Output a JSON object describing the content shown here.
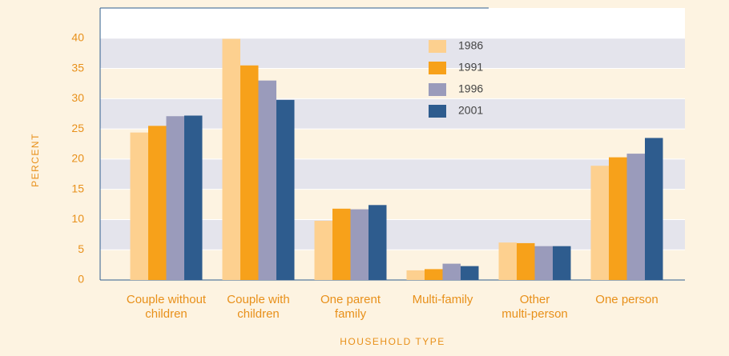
{
  "chart_data": {
    "type": "bar",
    "y_label": "PERCENT",
    "x_label": "HOUSEHOLD TYPE",
    "categories": [
      "Couple without\nchildren",
      "Couple with\nchildren",
      "One parent\nfamily",
      "Multi-family",
      "Other\nmulti-person",
      "One person"
    ],
    "series": [
      {
        "name": "1986",
        "color": "#fdd08f",
        "values": [
          24.4,
          39.9,
          9.8,
          1.6,
          6.2,
          18.9
        ]
      },
      {
        "name": "1991",
        "color": "#f7a11a",
        "values": [
          25.5,
          35.5,
          11.8,
          1.8,
          6.1,
          20.3
        ]
      },
      {
        "name": "1996",
        "color": "#9a9bbb",
        "values": [
          27.1,
          33.0,
          11.7,
          2.7,
          5.6,
          20.9
        ]
      },
      {
        "name": "2001",
        "color": "#2e5c8e",
        "values": [
          27.2,
          29.8,
          12.4,
          2.3,
          5.6,
          23.5
        ]
      }
    ],
    "ylim": [
      0,
      45
    ],
    "yticks": [
      0,
      5,
      10,
      15,
      20,
      25,
      30,
      35,
      40
    ],
    "grid": true
  }
}
